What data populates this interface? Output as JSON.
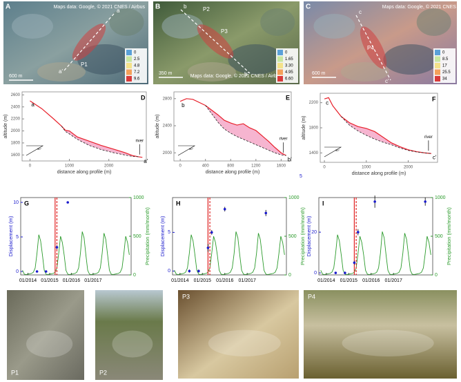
{
  "maps": [
    {
      "label": "A",
      "credit": "Maps data: Google, © 2021 CNES / Airbus",
      "start": "a",
      "end": "a'",
      "points": [
        "P1"
      ],
      "scale": "600 m",
      "legend": [
        "0",
        "2.5",
        "4.8",
        "7.2",
        "9.6"
      ]
    },
    {
      "label": "B",
      "credit": "Maps data: Google, © 2021 CNES / Airbus",
      "start": "b",
      "end": "b'",
      "points": [
        "P2",
        "P3"
      ],
      "scale": "350 m",
      "legend": [
        "0",
        "1.65",
        "3.30",
        "4.95",
        "6.60"
      ]
    },
    {
      "label": "C",
      "credit": "Maps data: Google, © 2021 CNES / Airbus",
      "start": "c",
      "end": "c'",
      "points": [
        "P4"
      ],
      "scale": "600 m",
      "legend": [
        "0",
        "8.5",
        "17",
        "25.5",
        "34"
      ]
    }
  ],
  "legend_colors": [
    "#5aa0d8",
    "#c8e6a0",
    "#f4e28a",
    "#f4a05a",
    "#d83a3a"
  ],
  "chart_data": [
    {
      "type": "line",
      "label": "D",
      "xlabel": "distance along profile (m)",
      "ylabel": "altitude (m)",
      "x": [
        0,
        300,
        600,
        800,
        900,
        1000,
        1200,
        1500,
        1800,
        2100,
        2400,
        2600,
        2750,
        2850
      ],
      "series": [
        {
          "color": "#e8202a",
          "values": [
            2500,
            2370,
            2200,
            2080,
            2010,
            2000,
            1900,
            1830,
            1760,
            1700,
            1640,
            1590,
            1570,
            1560
          ]
        },
        {
          "color": "#222222",
          "values": [
            null,
            null,
            null,
            2080,
            1990,
            1950,
            1860,
            1760,
            1690,
            1640,
            1600,
            1575,
            1570,
            null
          ]
        }
      ],
      "xlim": [
        -200,
        2950
      ],
      "ylim": [
        1500,
        2650
      ],
      "xticks": [
        0,
        1000,
        2000
      ],
      "yticks": [
        1600,
        1800,
        2000,
        2200,
        2400,
        2600
      ],
      "annotations": {
        "start": "a",
        "end": "a'",
        "river": "river",
        "angle": "30°"
      }
    },
    {
      "type": "line",
      "label": "E",
      "xlabel": "distance along profile (m)",
      "ylabel": "altitude (m)",
      "x": [
        0,
        100,
        200,
        400,
        600,
        700,
        800,
        900,
        1000,
        1100,
        1200,
        1300,
        1400,
        1500,
        1600,
        1680
      ],
      "series": [
        {
          "color": "#e8202a",
          "values": [
            2760,
            2800,
            2790,
            2700,
            2560,
            2480,
            2440,
            2410,
            2430,
            2370,
            2330,
            2250,
            2170,
            2080,
            2000,
            1960
          ]
        },
        {
          "color": "#222222",
          "values": [
            null,
            null,
            null,
            2700,
            2450,
            2350,
            2290,
            2240,
            2200,
            2160,
            2120,
            2080,
            2040,
            2000,
            1970,
            1960
          ]
        }
      ],
      "xlim": [
        -100,
        1760
      ],
      "ylim": [
        1880,
        2900
      ],
      "xticks": [
        0,
        400,
        800,
        1200,
        1600
      ],
      "yticks": [
        2000,
        2400,
        2800
      ],
      "annotations": {
        "start": "b",
        "end": "b'",
        "river": "river",
        "angle": "30°"
      }
    },
    {
      "type": "line",
      "label": "F",
      "xlabel": "distance along profile (m)",
      "ylabel": "altitude (m)",
      "x": [
        0,
        100,
        200,
        400,
        600,
        800,
        1000,
        1200,
        1400,
        1600,
        1800,
        2000,
        2200,
        2400,
        2550
      ],
      "series": [
        {
          "color": "#e8202a",
          "values": [
            2260,
            2280,
            2150,
            1980,
            1880,
            1820,
            1790,
            1740,
            1650,
            1560,
            1500,
            1450,
            1420,
            1400,
            1390
          ]
        },
        {
          "color": "#222222",
          "values": [
            null,
            null,
            null,
            1980,
            1840,
            1750,
            1680,
            1620,
            1570,
            1530,
            1480,
            1440,
            1415,
            1400,
            1390
          ]
        }
      ],
      "xlim": [
        -100,
        2700
      ],
      "ylim": [
        1250,
        2350
      ],
      "xticks": [
        0,
        1000,
        2000
      ],
      "yticks": [
        1400,
        1800,
        2200
      ],
      "annotations": {
        "start": "c",
        "end": "c'",
        "river": "river",
        "angle": "30°",
        "note": "5"
      }
    },
    {
      "type": "combo",
      "label": "G",
      "ylabel": "Displacement (m)",
      "y2label": "Precipitation (mm/month)",
      "x": [
        "2013-10",
        "2013-11",
        "2013-12",
        "2014-01",
        "2014-02",
        "2014-03",
        "2014-04",
        "2014-05",
        "2014-06",
        "2014-07",
        "2014-08",
        "2014-09",
        "2014-10",
        "2014-11",
        "2014-12",
        "2015-01",
        "2015-02",
        "2015-03",
        "2015-04",
        "2015-05",
        "2015-06",
        "2015-07",
        "2015-08",
        "2015-09",
        "2015-10",
        "2015-11",
        "2015-12",
        "2016-01",
        "2016-02",
        "2016-03",
        "2016-04",
        "2016-05",
        "2016-06",
        "2016-07",
        "2016-08",
        "2016-09",
        "2016-10",
        "2016-11",
        "2016-12",
        "2017-01",
        "2017-02",
        "2017-03",
        "2017-04",
        "2017-05",
        "2017-06",
        "2017-07",
        "2017-08",
        "2017-09",
        "2017-10",
        "2017-11",
        "2017-12",
        "2018-01",
        "2018-02",
        "2018-03",
        "2018-04",
        "2018-05",
        "2018-06",
        "2018-07",
        "2018-08",
        "2018-09"
      ],
      "series": [
        {
          "color": "#2a9a2a",
          "axis": "y2",
          "values": [
            60,
            10,
            5,
            10,
            15,
            20,
            35,
            90,
            280,
            520,
            440,
            260,
            60,
            10,
            5,
            10,
            15,
            20,
            35,
            90,
            280,
            500,
            420,
            260,
            60,
            10,
            5,
            10,
            15,
            20,
            35,
            90,
            280,
            560,
            480,
            260,
            60,
            10,
            5,
            10,
            15,
            20,
            35,
            90,
            280,
            540,
            460,
            260,
            60,
            10,
            5,
            10,
            15,
            20,
            35,
            90,
            280,
            500,
            420,
            260
          ]
        }
      ],
      "points": {
        "color": "#1a1acc",
        "x": [
          "2014-06",
          "2014-11",
          "2015-05",
          "2015-11"
        ],
        "values": [
          0,
          0,
          3.5,
          10
        ],
        "errors": [
          0.1,
          0.1,
          0.3,
          0.1
        ]
      },
      "vlines": [
        {
          "x": "2015-04",
          "color": "#e02020"
        },
        {
          "x": "2015-05",
          "color": "#e02020"
        }
      ],
      "xlim": [
        "2013-09",
        "2018-10"
      ],
      "ylim": [
        -0.5,
        10.7
      ],
      "yticks": [
        0,
        5,
        10
      ],
      "y2lim": [
        0,
        1000
      ],
      "y2ticks": [
        0,
        500,
        1000
      ],
      "xticks": [
        {
          "value": "2014-01",
          "label": "01/2014"
        },
        {
          "value": "2015-01",
          "label": "01/2015"
        },
        {
          "value": "2016-01",
          "label": "01/2016"
        },
        {
          "value": "2017-01",
          "label": "01/2017"
        }
      ]
    },
    {
      "type": "combo",
      "label": "H",
      "ylabel": "Displacement (m)",
      "y2label": "Precipitation (mm/month)",
      "x": [
        "2013-10",
        "2013-11",
        "2013-12",
        "2014-01",
        "2014-02",
        "2014-03",
        "2014-04",
        "2014-05",
        "2014-06",
        "2014-07",
        "2014-08",
        "2014-09",
        "2014-10",
        "2014-11",
        "2014-12",
        "2015-01",
        "2015-02",
        "2015-03",
        "2015-04",
        "2015-05",
        "2015-06",
        "2015-07",
        "2015-08",
        "2015-09",
        "2015-10",
        "2015-11",
        "2015-12",
        "2016-01",
        "2016-02",
        "2016-03",
        "2016-04",
        "2016-05",
        "2016-06",
        "2016-07",
        "2016-08",
        "2016-09",
        "2016-10",
        "2016-11",
        "2016-12",
        "2017-01",
        "2017-02",
        "2017-03",
        "2017-04",
        "2017-05",
        "2017-06",
        "2017-07",
        "2017-08",
        "2017-09",
        "2017-10",
        "2017-11",
        "2017-12",
        "2018-01",
        "2018-02",
        "2018-03",
        "2018-04",
        "2018-05",
        "2018-06",
        "2018-07",
        "2018-08",
        "2018-09"
      ],
      "series": [
        {
          "color": "#2a9a2a",
          "axis": "y2",
          "values": [
            60,
            10,
            5,
            10,
            15,
            20,
            35,
            90,
            280,
            520,
            440,
            260,
            60,
            10,
            5,
            10,
            15,
            20,
            35,
            90,
            280,
            500,
            420,
            260,
            60,
            10,
            5,
            10,
            15,
            20,
            35,
            90,
            280,
            560,
            480,
            260,
            60,
            10,
            5,
            10,
            15,
            20,
            35,
            90,
            280,
            540,
            460,
            260,
            60,
            10,
            5,
            10,
            15,
            20,
            35,
            90,
            280,
            500,
            420,
            260
          ]
        }
      ],
      "points": {
        "color": "#1a1acc",
        "x": [
          "2014-06",
          "2014-11",
          "2015-04",
          "2015-06",
          "2016-01",
          "2017-11"
        ],
        "values": [
          0,
          0,
          3,
          5,
          8,
          7.5
        ],
        "errors": [
          0.2,
          0.2,
          0.5,
          0.3,
          0.3,
          0.4
        ]
      },
      "vlines": [
        {
          "x": "2015-04",
          "color": "#e02020"
        },
        {
          "x": "2015-05",
          "color": "#e02020"
        }
      ],
      "xlim": [
        "2013-09",
        "2018-10"
      ],
      "ylim": [
        -0.5,
        9.5
      ],
      "yticks": [
        0,
        5
      ],
      "y2lim": [
        0,
        1000
      ],
      "y2ticks": [
        0,
        500,
        1000
      ],
      "xticks": [
        {
          "value": "2014-01",
          "label": "01/2014"
        },
        {
          "value": "2015-01",
          "label": "01/2015"
        },
        {
          "value": "2016-01",
          "label": "01/2016"
        },
        {
          "value": "2017-01",
          "label": "01/2017"
        }
      ]
    },
    {
      "type": "combo",
      "label": "I",
      "ylabel": "Displacement (m)",
      "y2label": "Precipitation (mm/month)",
      "x": [
        "2013-10",
        "2013-11",
        "2013-12",
        "2014-01",
        "2014-02",
        "2014-03",
        "2014-04",
        "2014-05",
        "2014-06",
        "2014-07",
        "2014-08",
        "2014-09",
        "2014-10",
        "2014-11",
        "2014-12",
        "2015-01",
        "2015-02",
        "2015-03",
        "2015-04",
        "2015-05",
        "2015-06",
        "2015-07",
        "2015-08",
        "2015-09",
        "2015-10",
        "2015-11",
        "2015-12",
        "2016-01",
        "2016-02",
        "2016-03",
        "2016-04",
        "2016-05",
        "2016-06",
        "2016-07",
        "2016-08",
        "2016-09",
        "2016-10",
        "2016-11",
        "2016-12",
        "2017-01",
        "2017-02",
        "2017-03",
        "2017-04",
        "2017-05",
        "2017-06",
        "2017-07",
        "2017-08",
        "2017-09",
        "2017-10",
        "2017-11",
        "2017-12",
        "2018-01",
        "2018-02",
        "2018-03",
        "2018-04",
        "2018-05",
        "2018-06",
        "2018-07",
        "2018-08",
        "2018-09"
      ],
      "series": [
        {
          "color": "#2a9a2a",
          "axis": "y2",
          "values": [
            60,
            10,
            5,
            10,
            15,
            20,
            35,
            90,
            280,
            520,
            440,
            260,
            60,
            10,
            5,
            10,
            15,
            20,
            35,
            90,
            280,
            500,
            420,
            260,
            60,
            10,
            5,
            10,
            15,
            20,
            35,
            90,
            280,
            560,
            480,
            260,
            60,
            10,
            5,
            10,
            15,
            20,
            35,
            90,
            280,
            540,
            460,
            260,
            60,
            10,
            5,
            10,
            15,
            20,
            35,
            90,
            280,
            500,
            420,
            260
          ]
        }
      ],
      "points": {
        "color": "#1a1acc",
        "x": [
          "2014-06",
          "2014-11",
          "2015-04",
          "2015-06",
          "2016-03",
          "2018-06"
        ],
        "values": [
          0,
          0,
          5,
          20,
          35,
          35
        ],
        "errors": [
          0.5,
          0.5,
          1,
          1.5,
          3,
          2
        ]
      },
      "vlines": [
        {
          "x": "2015-04",
          "color": "#e02020"
        },
        {
          "x": "2015-05",
          "color": "#e02020"
        }
      ],
      "xlim": [
        "2013-09",
        "2018-10"
      ],
      "ylim": [
        -1,
        37
      ],
      "yticks": [
        0,
        20
      ],
      "y2lim": [
        0,
        1000
      ],
      "y2ticks": [
        0,
        500,
        1000
      ],
      "xticks": [
        {
          "value": "2014-01",
          "label": "01/2014"
        },
        {
          "value": "2015-01",
          "label": "01/2015"
        },
        {
          "value": "2016-01",
          "label": "01/2016"
        },
        {
          "value": "2017-01",
          "label": "01/2017"
        }
      ]
    }
  ],
  "photos": [
    {
      "label": "P1"
    },
    {
      "label": "P2"
    },
    {
      "label": "P3"
    },
    {
      "label": "P4"
    }
  ]
}
